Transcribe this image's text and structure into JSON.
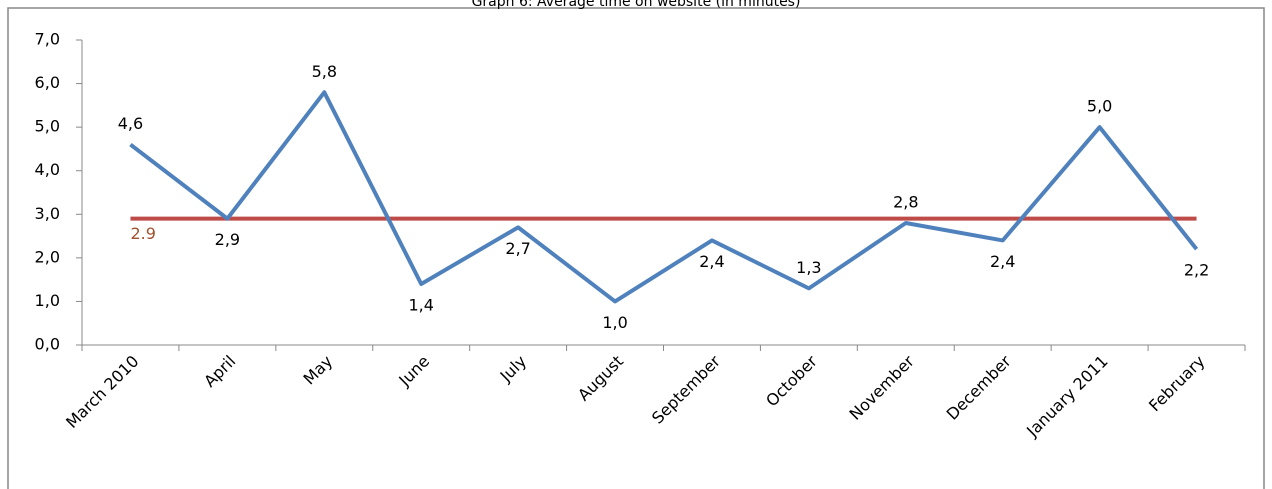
{
  "chart_data": {
    "type": "line",
    "title": "Graph 6: Average time on website (in minutes)",
    "categories": [
      "March 2010",
      "April",
      "May",
      "June",
      "July",
      "August",
      "September",
      "October",
      "November",
      "December",
      "January 2011",
      "February"
    ],
    "series": [
      {
        "color": "#4f81bd",
        "values": [
          4.6,
          2.9,
          5.8,
          1.4,
          2.7,
          1.0,
          2.4,
          1.3,
          2.8,
          2.4,
          5.0,
          2.2
        ],
        "value_labels": [
          "4,6",
          "2,9",
          "5,8",
          "1,4",
          "2,7",
          "1,0",
          "2,4",
          "1,3",
          "2,8",
          "2,4",
          "5,0",
          "2,2"
        ]
      }
    ],
    "reference_line": {
      "value": 2.9,
      "color": "#be4b48",
      "label_color": "#a0522d"
    },
    "ylim": [
      0,
      7
    ],
    "yticks": [
      {
        "value": 0,
        "label": "0,0"
      },
      {
        "value": 1,
        "label": "1,0"
      },
      {
        "value": 2,
        "label": "2,0"
      },
      {
        "value": 3,
        "label": "3,0"
      },
      {
        "value": 4,
        "label": "4,0"
      },
      {
        "value": 5,
        "label": "5,0"
      },
      {
        "value": 6,
        "label": "6,0"
      },
      {
        "value": 7,
        "label": "7,0"
      }
    ],
    "grid": false
  }
}
